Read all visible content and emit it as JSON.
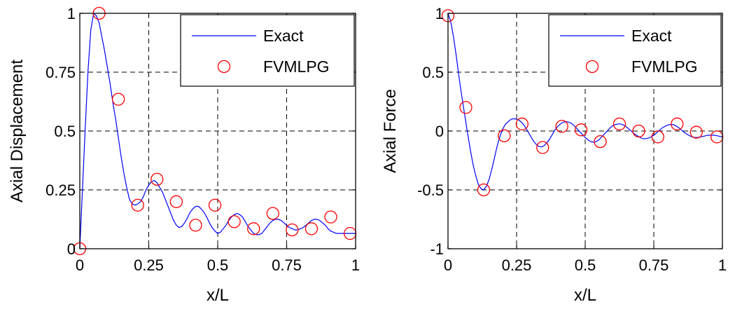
{
  "colors": {
    "exact": "#0000ff",
    "fvmlpg": "#ff0000",
    "axes": "#000000",
    "background": "#ffffff"
  },
  "chart_data": [
    {
      "type": "line",
      "title": "",
      "xlabel": "x/L",
      "ylabel": "Axial Displacement",
      "xlim": [
        0,
        1
      ],
      "ylim": [
        0,
        1
      ],
      "xticks": [
        0,
        0.25,
        0.5,
        0.75,
        1
      ],
      "xtick_labels": [
        "0",
        "0.25",
        "0.5",
        "0.75",
        "1"
      ],
      "yticks": [
        0,
        0.25,
        0.5,
        0.75,
        1
      ],
      "ytick_labels": [
        "0",
        "0.25",
        "0.5",
        "0.75",
        "1"
      ],
      "grid": true,
      "legend": "top-right",
      "series": [
        {
          "name": "Exact",
          "style": "line",
          "x": [
            0,
            0.01,
            0.02,
            0.03,
            0.04,
            0.05,
            0.06,
            0.07,
            0.08,
            0.09,
            0.1,
            0.11,
            0.12,
            0.13,
            0.14,
            0.15,
            0.16,
            0.17,
            0.18,
            0.19,
            0.2,
            0.21,
            0.22,
            0.23,
            0.24,
            0.25,
            0.26,
            0.27,
            0.28,
            0.29,
            0.3,
            0.31,
            0.32,
            0.33,
            0.34,
            0.35,
            0.36,
            0.37,
            0.38,
            0.39,
            0.4,
            0.41,
            0.42,
            0.43,
            0.44,
            0.45,
            0.46,
            0.47,
            0.48,
            0.49,
            0.5,
            0.51,
            0.52,
            0.53,
            0.54,
            0.55,
            0.56,
            0.57,
            0.58,
            0.59,
            0.6,
            0.61,
            0.62,
            0.63,
            0.64,
            0.65,
            0.66,
            0.67,
            0.68,
            0.69,
            0.7,
            0.71,
            0.72,
            0.73,
            0.74,
            0.75,
            0.76,
            0.77,
            0.78,
            0.79,
            0.8,
            0.81,
            0.82,
            0.83,
            0.84,
            0.85,
            0.86,
            0.87,
            0.88,
            0.89,
            0.9,
            0.91,
            0.92,
            0.93,
            0.94,
            0.95,
            0.96,
            0.97,
            0.98,
            0.99,
            1.0
          ],
          "y": [
            0,
            0.26,
            0.52,
            0.76,
            0.93,
            1.0,
            0.99,
            0.96,
            0.9,
            0.84,
            0.77,
            0.7,
            0.62,
            0.55,
            0.47,
            0.39,
            0.32,
            0.26,
            0.21,
            0.19,
            0.185,
            0.19,
            0.2,
            0.22,
            0.25,
            0.27,
            0.285,
            0.29,
            0.28,
            0.26,
            0.24,
            0.21,
            0.18,
            0.15,
            0.12,
            0.1,
            0.09,
            0.095,
            0.11,
            0.13,
            0.155,
            0.17,
            0.18,
            0.18,
            0.17,
            0.155,
            0.135,
            0.11,
            0.09,
            0.075,
            0.065,
            0.07,
            0.085,
            0.1,
            0.12,
            0.135,
            0.145,
            0.15,
            0.145,
            0.135,
            0.115,
            0.095,
            0.08,
            0.065,
            0.06,
            0.06,
            0.065,
            0.08,
            0.095,
            0.11,
            0.12,
            0.125,
            0.125,
            0.12,
            0.11,
            0.1,
            0.09,
            0.085,
            0.08,
            0.08,
            0.085,
            0.09,
            0.1,
            0.11,
            0.12,
            0.125,
            0.125,
            0.12,
            0.11,
            0.1,
            0.085,
            0.075,
            0.07,
            0.065,
            0.065,
            0.065,
            0.065,
            0.065,
            0.065,
            0.065,
            0.065
          ]
        },
        {
          "name": "FVMLPG",
          "style": "marker",
          "x": [
            0,
            0.07,
            0.14,
            0.21,
            0.28,
            0.35,
            0.42,
            0.49,
            0.56,
            0.63,
            0.7,
            0.77,
            0.84,
            0.91,
            0.98
          ],
          "y": [
            0,
            1.0,
            0.635,
            0.185,
            0.295,
            0.2,
            0.1,
            0.185,
            0.115,
            0.085,
            0.15,
            0.08,
            0.085,
            0.135,
            0.065
          ]
        }
      ]
    },
    {
      "type": "line",
      "title": "",
      "xlabel": "x/L",
      "ylabel": "Axial Force",
      "xlim": [
        0,
        1
      ],
      "ylim": [
        -1,
        1
      ],
      "xticks": [
        0,
        0.25,
        0.5,
        0.75,
        1
      ],
      "xtick_labels": [
        "0",
        "0.25",
        "0.5",
        "0.75",
        "1"
      ],
      "yticks": [
        -1,
        -0.5,
        0,
        0.5,
        1
      ],
      "ytick_labels": [
        "-1",
        "-0.5",
        "0",
        "0.5",
        "1"
      ],
      "grid": true,
      "legend": "top-right",
      "series": [
        {
          "name": "Exact",
          "style": "line",
          "x": [
            0,
            0.01,
            0.02,
            0.03,
            0.04,
            0.05,
            0.06,
            0.07,
            0.08,
            0.09,
            0.1,
            0.11,
            0.12,
            0.13,
            0.14,
            0.15,
            0.16,
            0.17,
            0.18,
            0.19,
            0.2,
            0.21,
            0.22,
            0.23,
            0.24,
            0.25,
            0.26,
            0.27,
            0.28,
            0.29,
            0.3,
            0.31,
            0.32,
            0.33,
            0.34,
            0.35,
            0.36,
            0.37,
            0.38,
            0.39,
            0.4,
            0.41,
            0.42,
            0.43,
            0.44,
            0.45,
            0.46,
            0.47,
            0.48,
            0.49,
            0.5,
            0.51,
            0.52,
            0.53,
            0.54,
            0.55,
            0.56,
            0.57,
            0.58,
            0.59,
            0.6,
            0.61,
            0.62,
            0.63,
            0.64,
            0.65,
            0.66,
            0.67,
            0.68,
            0.69,
            0.7,
            0.71,
            0.72,
            0.73,
            0.74,
            0.75,
            0.76,
            0.77,
            0.78,
            0.79,
            0.8,
            0.81,
            0.82,
            0.83,
            0.84,
            0.85,
            0.86,
            0.87,
            0.88,
            0.89,
            0.9,
            0.91,
            0.92,
            0.93,
            0.94,
            0.95,
            0.96,
            0.97,
            0.98,
            0.99,
            1.0
          ],
          "y": [
            1.0,
            0.93,
            0.8,
            0.64,
            0.46,
            0.3,
            0.15,
            0.0,
            -0.14,
            -0.27,
            -0.37,
            -0.45,
            -0.49,
            -0.5,
            -0.47,
            -0.41,
            -0.32,
            -0.22,
            -0.12,
            -0.04,
            0.02,
            0.06,
            0.08,
            0.1,
            0.105,
            0.1,
            0.09,
            0.07,
            0.04,
            0.0,
            -0.04,
            -0.08,
            -0.11,
            -0.13,
            -0.135,
            -0.125,
            -0.1,
            -0.07,
            -0.03,
            0.01,
            0.04,
            0.06,
            0.075,
            0.08,
            0.075,
            0.065,
            0.045,
            0.02,
            -0.005,
            -0.03,
            -0.055,
            -0.075,
            -0.09,
            -0.095,
            -0.09,
            -0.075,
            -0.05,
            -0.025,
            0.0,
            0.025,
            0.045,
            0.055,
            0.06,
            0.06,
            0.05,
            0.035,
            0.015,
            -0.005,
            -0.025,
            -0.04,
            -0.055,
            -0.065,
            -0.065,
            -0.06,
            -0.05,
            -0.035,
            -0.015,
            0.005,
            0.025,
            0.04,
            0.05,
            0.055,
            0.055,
            0.045,
            0.03,
            0.01,
            -0.01,
            -0.025,
            -0.04,
            -0.05,
            -0.055,
            -0.055,
            -0.05,
            -0.045,
            -0.04,
            -0.035,
            -0.035,
            -0.035,
            -0.04,
            -0.045,
            -0.05
          ]
        },
        {
          "name": "FVMLPG",
          "style": "marker",
          "x": [
            0,
            0.065,
            0.13,
            0.205,
            0.27,
            0.345,
            0.415,
            0.485,
            0.555,
            0.625,
            0.695,
            0.765,
            0.835,
            0.905,
            0.98
          ],
          "y": [
            0.98,
            0.2,
            -0.5,
            -0.04,
            0.06,
            -0.14,
            0.04,
            0.01,
            -0.09,
            0.06,
            0.0,
            -0.05,
            0.06,
            -0.01,
            -0.05
          ]
        }
      ]
    }
  ]
}
